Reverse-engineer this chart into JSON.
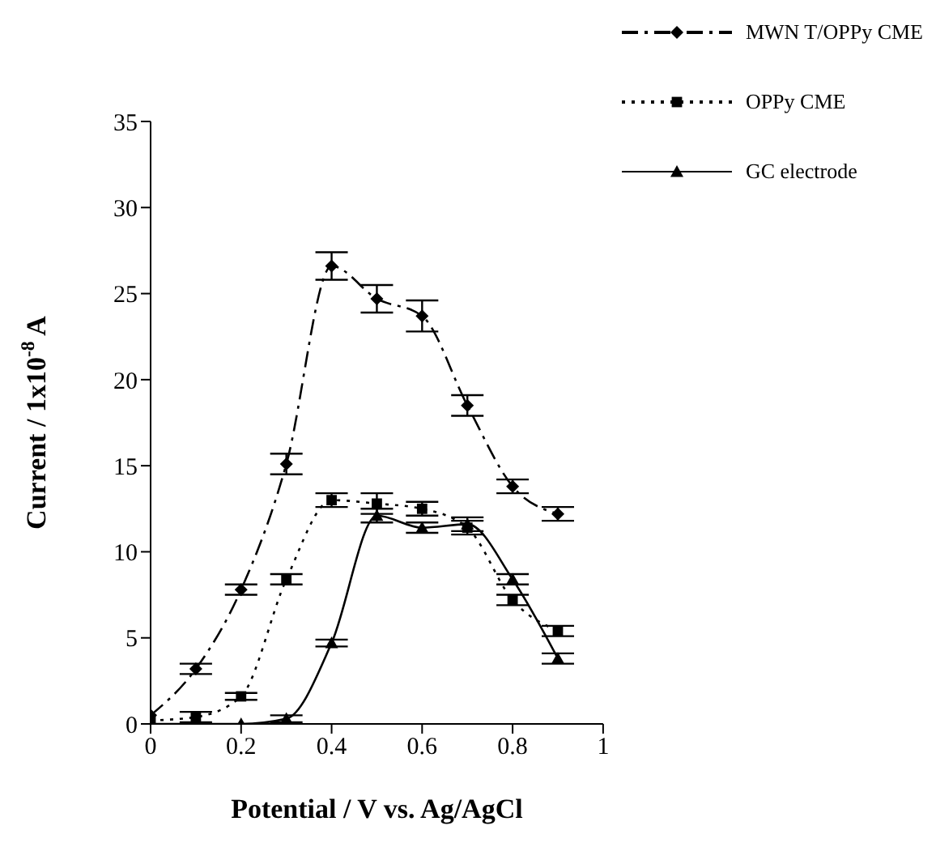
{
  "chart_data": {
    "type": "line",
    "xlabel": "Potential / V vs. Ag/AgCl",
    "ylabel": "Current / 1x10$^{-8}$ A",
    "x": [
      0,
      0.1,
      0.2,
      0.3,
      0.4,
      0.5,
      0.6,
      0.7,
      0.8,
      0.9
    ],
    "series": [
      {
        "name": "MWN T/OPPy CME",
        "color": "#000000",
        "marker": "diamond",
        "line_style": "dashed",
        "values": [
          0.5,
          3.2,
          7.8,
          15.1,
          26.6,
          24.7,
          23.7,
          18.5,
          13.8,
          12.2
        ],
        "errors": [
          null,
          0.3,
          0.3,
          0.6,
          0.8,
          0.8,
          0.9,
          0.6,
          0.4,
          0.4
        ]
      },
      {
        "name": "OPPy CME",
        "color": "#000000",
        "marker": "square",
        "line_style": "dotted",
        "values": [
          0.2,
          0.4,
          1.6,
          8.4,
          13.0,
          12.8,
          12.5,
          11.4,
          7.2,
          5.4
        ],
        "errors": [
          null,
          0.3,
          0.2,
          0.3,
          0.4,
          0.6,
          0.4,
          0.4,
          0.3,
          0.3
        ]
      },
      {
        "name": "GC electrode",
        "color": "#000000",
        "marker": "triangle",
        "line_style": "solid",
        "values": [
          0,
          0,
          0,
          0.3,
          4.7,
          12.1,
          11.4,
          11.6,
          8.4,
          3.8
        ],
        "errors": [
          null,
          null,
          null,
          0.2,
          0.2,
          0.4,
          0.3,
          0.4,
          0.3,
          0.3
        ]
      }
    ],
    "xlim": [
      0,
      1
    ],
    "xticks": [
      0,
      0.2,
      0.4,
      0.6,
      0.8,
      1
    ],
    "ylim": [
      0,
      35
    ],
    "yticks": [
      0,
      5,
      10,
      15,
      20,
      25,
      30,
      35
    ],
    "grid": false,
    "legend": "top right"
  }
}
